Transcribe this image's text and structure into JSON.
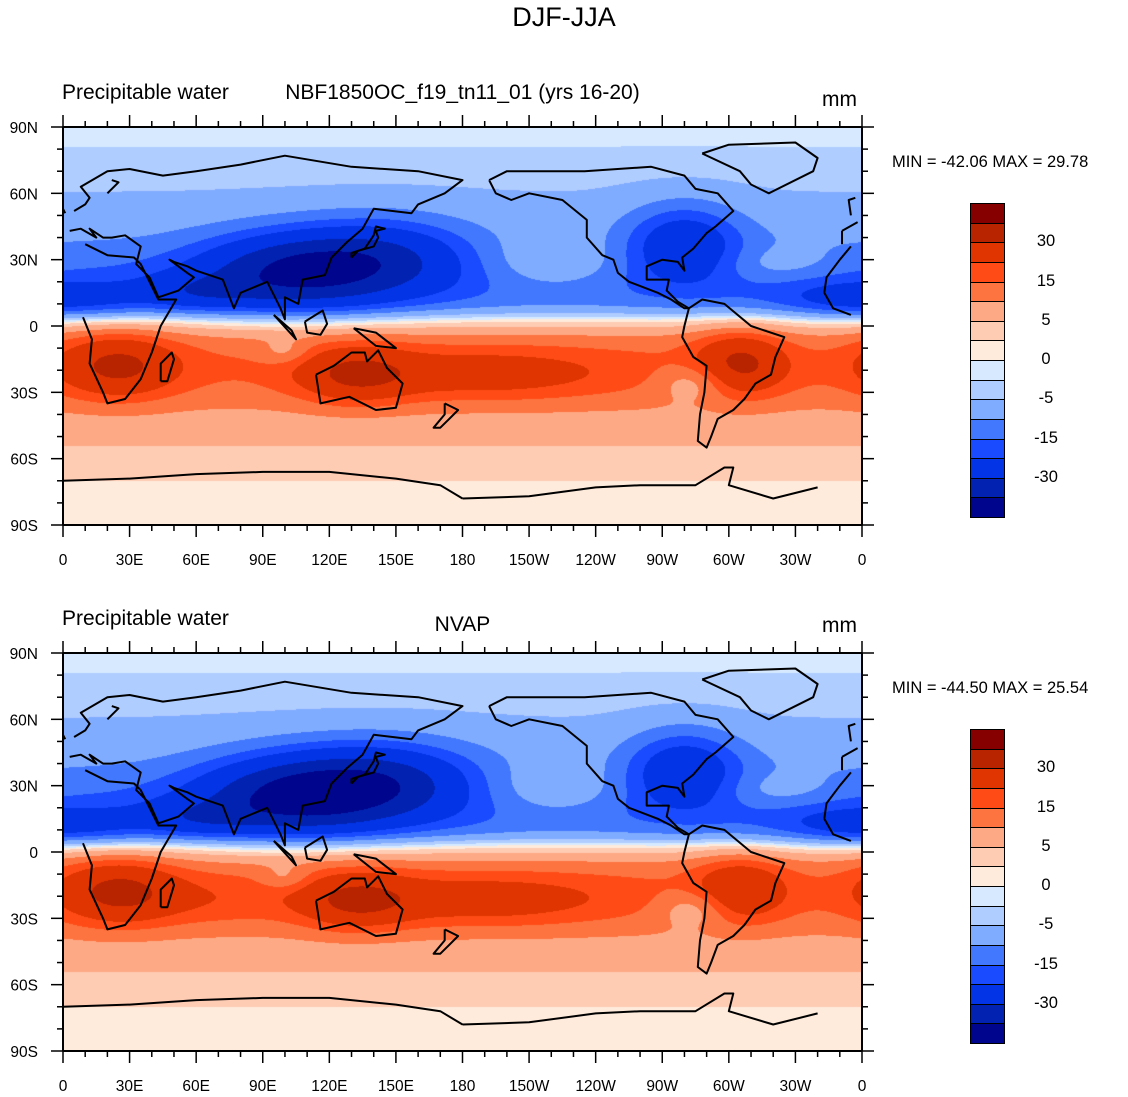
{
  "figure": {
    "title": "DJF-JJA"
  },
  "chart_data": [
    {
      "type": "heatmap",
      "subtype": "filled-contour-map",
      "projection": "cylindrical-equidistant",
      "title_left": "Precipitable water",
      "title_center": "NBF1850OC_f19_tn11_01 (yrs 16-20)",
      "title_right": "mm",
      "stats_text": "MIN = -42.06 MAX =  29.78",
      "min": -42.06,
      "max": 29.78,
      "lon_range": [
        0,
        360
      ],
      "lat_range": [
        -90,
        90
      ],
      "x_tick_labels": [
        "0",
        "30E",
        "60E",
        "90E",
        "120E",
        "150E",
        "180",
        "150W",
        "120W",
        "90W",
        "60W",
        "30W",
        "0"
      ],
      "y_tick_labels": [
        "90N",
        "60N",
        "30N",
        "0",
        "30S",
        "60S",
        "90S"
      ],
      "contour_levels": [
        -40,
        -30,
        -20,
        -15,
        -10,
        -5,
        -2,
        0,
        2,
        5,
        10,
        15,
        20,
        30,
        40
      ],
      "colorbar_labels": [
        "30",
        "15",
        "5",
        "0",
        "-5",
        "-15",
        "-30"
      ],
      "colorbar_orientation": "vertical",
      "colorbar_placement": "right",
      "pattern_notes": "Negative (blue) across Northern Hemisphere, strongest over South/East Asia, NW Pacific and eastern North America; positive (red) across Southern Hemisphere, strongest over southern Africa, Australia and central South America."
    },
    {
      "type": "heatmap",
      "subtype": "filled-contour-map",
      "projection": "cylindrical-equidistant",
      "title_left": "Precipitable water",
      "title_center": "NVAP",
      "title_right": "mm",
      "stats_text": "MIN = -44.50 MAX =  25.54",
      "min": -44.5,
      "max": 25.54,
      "lon_range": [
        0,
        360
      ],
      "lat_range": [
        -90,
        90
      ],
      "x_tick_labels": [
        "0",
        "30E",
        "60E",
        "90E",
        "120E",
        "150E",
        "180",
        "150W",
        "120W",
        "90W",
        "60W",
        "30W",
        "0"
      ],
      "y_tick_labels": [
        "90N",
        "60N",
        "30N",
        "0",
        "30S",
        "60S",
        "90S"
      ],
      "contour_levels": [
        -40,
        -30,
        -20,
        -15,
        -10,
        -5,
        -2,
        0,
        2,
        5,
        10,
        15,
        20,
        30,
        40
      ],
      "colorbar_labels": [
        "30",
        "15",
        "5",
        "0",
        "-5",
        "-15",
        "-30"
      ],
      "colorbar_orientation": "vertical",
      "colorbar_placement": "right",
      "pattern_notes": "Same dipole; Northern Hemisphere negative with strongest values over East Asia; Southern Hemisphere positive with maxima over southern Africa, northern Australia and South America."
    }
  ],
  "colormap": {
    "colors_top_to_bottom": [
      "#870000",
      "#b82300",
      "#e03500",
      "#ff4c17",
      "#fd7440",
      "#fea985",
      "#fecbb3",
      "#feebdb",
      "#d6e9ff",
      "#b0cdff",
      "#80acff",
      "#4278fe",
      "#1a4bff",
      "#0334e6",
      "#0223b1",
      "#00058e"
    ]
  }
}
